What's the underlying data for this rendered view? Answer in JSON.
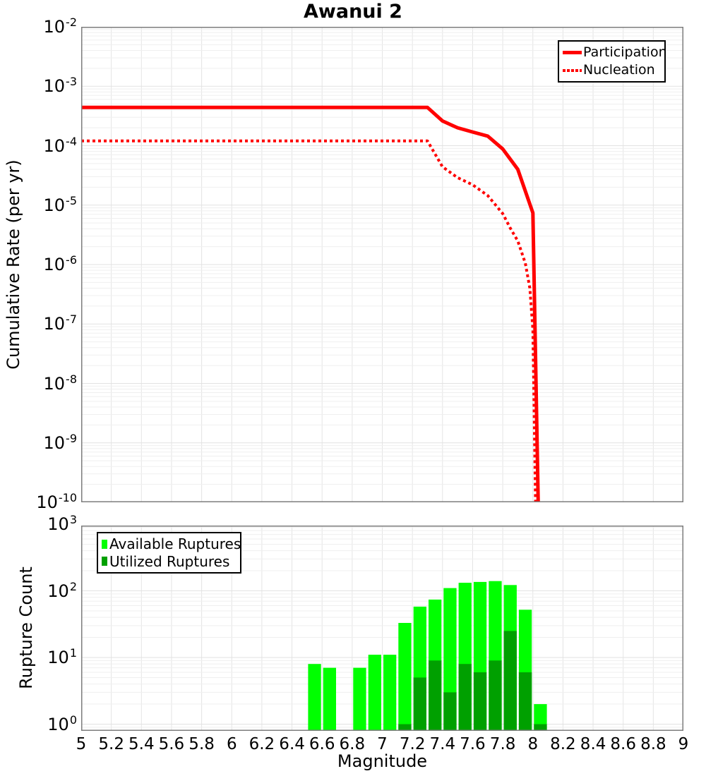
{
  "chart_data": [
    {
      "type": "line",
      "title": "Awanui 2",
      "ylabel": "Cumulative Rate (per yr)",
      "xlim": [
        5,
        9
      ],
      "ylim": [
        1e-10,
        0.01
      ],
      "y_tick_exponents": [
        -2,
        -3,
        -4,
        -5,
        -6,
        -7,
        -8,
        -9,
        -10
      ],
      "grid": true,
      "legend_position": "top-right",
      "series": [
        {
          "name": "Participation",
          "style": "solid",
          "color": "#ff0000",
          "points": [
            [
              5.0,
              0.00044
            ],
            [
              7.3,
              0.00044
            ],
            [
              7.4,
              0.00026
            ],
            [
              7.5,
              0.0002
            ],
            [
              7.6,
              0.00017
            ],
            [
              7.7,
              0.000145
            ],
            [
              7.8,
              8.8e-05
            ],
            [
              7.9,
              4e-05
            ],
            [
              8.0,
              7.4e-06
            ],
            [
              8.05,
              1e-12
            ]
          ]
        },
        {
          "name": "Nucleation",
          "style": "dotted",
          "color": "#ff0000",
          "points": [
            [
              5.0,
              0.00012
            ],
            [
              7.3,
              0.00012
            ],
            [
              7.4,
              4.4e-05
            ],
            [
              7.5,
              2.9e-05
            ],
            [
              7.6,
              2.2e-05
            ],
            [
              7.7,
              1.45e-05
            ],
            [
              7.8,
              7.2e-06
            ],
            [
              7.85,
              4.1e-06
            ],
            [
              7.9,
              2.5e-06
            ],
            [
              7.95,
              1.05e-06
            ],
            [
              7.98,
              4e-07
            ],
            [
              8.0,
              8e-08
            ],
            [
              8.03,
              1e-12
            ]
          ]
        }
      ]
    },
    {
      "type": "bar",
      "ylabel": "Rupture Count",
      "xlabel": "Magnitude",
      "xlim": [
        5,
        9
      ],
      "ylim": [
        0.79,
        953
      ],
      "y_tick_exponents": [
        3,
        2,
        1,
        0
      ],
      "x_tick_labels": [
        "5",
        "5.2",
        "5.4",
        "5.6",
        "5.8",
        "6",
        "6.2",
        "6.4",
        "6.6",
        "6.8",
        "7",
        "7.2",
        "7.4",
        "7.6",
        "7.8",
        "8",
        "8.2",
        "8.4",
        "8.6",
        "8.8",
        "9"
      ],
      "bin_width": 0.1,
      "colors": {
        "available": "#00ff00",
        "utilized": "#00a000"
      },
      "legend": [
        {
          "label": "Available Ruptures",
          "color_key": "available"
        },
        {
          "label": "Utilized Ruptures",
          "color_key": "utilized"
        }
      ],
      "bars": [
        {
          "m": 6.5,
          "available": 8,
          "utilized": 0
        },
        {
          "m": 6.6,
          "available": 7,
          "utilized": 0
        },
        {
          "m": 6.7,
          "available": 0,
          "utilized": 0
        },
        {
          "m": 6.8,
          "available": 7,
          "utilized": 0
        },
        {
          "m": 6.9,
          "available": 11,
          "utilized": 0
        },
        {
          "m": 7.0,
          "available": 11,
          "utilized": 0
        },
        {
          "m": 7.1,
          "available": 33,
          "utilized": 1
        },
        {
          "m": 7.2,
          "available": 58,
          "utilized": 5
        },
        {
          "m": 7.3,
          "available": 74,
          "utilized": 9
        },
        {
          "m": 7.4,
          "available": 110,
          "utilized": 3
        },
        {
          "m": 7.5,
          "available": 132,
          "utilized": 8
        },
        {
          "m": 7.6,
          "available": 136,
          "utilized": 6
        },
        {
          "m": 7.7,
          "available": 140,
          "utilized": 9
        },
        {
          "m": 7.8,
          "available": 122,
          "utilized": 25
        },
        {
          "m": 7.9,
          "available": 52,
          "utilized": 6
        },
        {
          "m": 8.0,
          "available": 2,
          "utilized": 1
        }
      ]
    }
  ]
}
